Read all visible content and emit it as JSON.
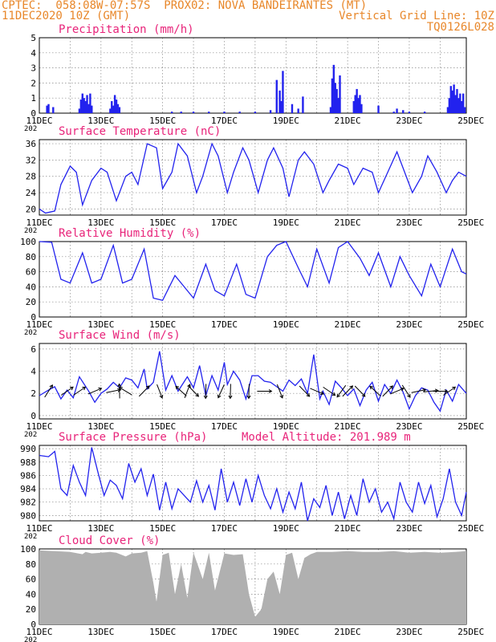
{
  "header": {
    "line1_left": "CPTEC:  058:08W-07:57S  PROX02: NOVA BANDEIRANTES (MT)",
    "line2_left": "11DEC2020 10Z (GMT)",
    "line2_right": "Vertical Grid Line: 10Z",
    "line3_right": "TQ0126L028"
  },
  "colors": {
    "header": "#e8872a",
    "title": "#e8247a",
    "series": "#2222ee",
    "cloud": "#b0b0b0",
    "grid": "#888888"
  },
  "x_tick_labels": [
    "11DEC",
    "13DEC",
    "15DEC",
    "17DEC",
    "19DEC",
    "21DEC",
    "23DEC",
    "25DEC"
  ],
  "x_year_fragment": "202",
  "chart_data": [
    {
      "type": "bar",
      "title": "Precipitation (mm/h)",
      "ylim": [
        0,
        5
      ],
      "yticks": [
        0,
        1,
        2,
        3,
        4,
        5
      ],
      "x_unit": "days since 11DEC 10Z",
      "bars": [
        [
          0.25,
          0.5
        ],
        [
          0.3,
          0.6
        ],
        [
          0.45,
          0.4
        ],
        [
          1.3,
          0.3
        ],
        [
          1.35,
          0.9
        ],
        [
          1.4,
          1.3
        ],
        [
          1.45,
          1.0
        ],
        [
          1.5,
          0.8
        ],
        [
          1.55,
          1.2
        ],
        [
          1.6,
          0.6
        ],
        [
          1.65,
          1.3
        ],
        [
          1.7,
          0.5
        ],
        [
          2.3,
          0.3
        ],
        [
          2.35,
          0.8
        ],
        [
          2.4,
          0.5
        ],
        [
          2.45,
          1.2
        ],
        [
          2.5,
          0.9
        ],
        [
          2.55,
          0.6
        ],
        [
          2.6,
          0.4
        ],
        [
          4.3,
          0.1
        ],
        [
          4.6,
          0.1
        ],
        [
          5.0,
          0.1
        ],
        [
          5.5,
          0.1
        ],
        [
          6.0,
          0.1
        ],
        [
          6.5,
          0.1
        ],
        [
          7.0,
          0.1
        ],
        [
          7.5,
          0.2
        ],
        [
          7.7,
          2.2
        ],
        [
          7.8,
          1.5
        ],
        [
          7.85,
          0.8
        ],
        [
          7.9,
          2.8
        ],
        [
          8.2,
          0.6
        ],
        [
          8.4,
          0.3
        ],
        [
          8.55,
          1.1
        ],
        [
          9.45,
          0.4
        ],
        [
          9.5,
          2.3
        ],
        [
          9.55,
          3.2
        ],
        [
          9.6,
          2.0
        ],
        [
          9.65,
          1.6
        ],
        [
          9.7,
          1.0
        ],
        [
          9.75,
          2.5
        ],
        [
          10.2,
          0.8
        ],
        [
          10.25,
          1.2
        ],
        [
          10.3,
          1.6
        ],
        [
          10.35,
          1.0
        ],
        [
          10.4,
          1.2
        ],
        [
          10.45,
          0.6
        ],
        [
          11.0,
          0.5
        ],
        [
          11.5,
          0.1
        ],
        [
          11.6,
          0.3
        ],
        [
          11.8,
          0.2
        ],
        [
          12.0,
          0.1
        ],
        [
          12.5,
          0.1
        ],
        [
          13.25,
          0.4
        ],
        [
          13.3,
          1.0
        ],
        [
          13.35,
          1.8
        ],
        [
          13.4,
          1.5
        ],
        [
          13.45,
          1.9
        ],
        [
          13.5,
          1.2
        ],
        [
          13.55,
          1.6
        ],
        [
          13.6,
          1.0
        ],
        [
          13.65,
          1.3
        ],
        [
          13.7,
          0.8
        ],
        [
          13.75,
          1.3
        ],
        [
          13.8,
          0.4
        ]
      ]
    },
    {
      "type": "line",
      "title": "Surface Temperature (nC)",
      "ylim": [
        18.5,
        37
      ],
      "yticks": [
        20,
        24,
        28,
        32,
        36
      ],
      "x": [
        0,
        0.2,
        0.5,
        0.7,
        1.0,
        1.2,
        1.4,
        1.7,
        2.0,
        2.2,
        2.5,
        2.8,
        3.0,
        3.2,
        3.5,
        3.8,
        4.0,
        4.3,
        4.5,
        4.8,
        5.1,
        5.3,
        5.6,
        5.8,
        6.1,
        6.3,
        6.6,
        6.8,
        7.1,
        7.4,
        7.6,
        7.9,
        8.1,
        8.4,
        8.6,
        8.9,
        9.2,
        9.4,
        9.7,
        10.0,
        10.2,
        10.5,
        10.8,
        11.0,
        11.3,
        11.6,
        11.8,
        12.1,
        12.4,
        12.6,
        12.9,
        13.2,
        13.4,
        13.6,
        13.85
      ],
      "y": [
        20,
        19,
        19.5,
        26,
        30.5,
        29,
        21,
        27,
        30,
        29,
        22,
        28,
        29,
        26,
        36,
        35,
        25,
        29,
        36,
        33,
        24,
        28,
        36,
        33,
        24,
        29,
        35,
        32,
        24,
        32,
        35,
        30,
        23,
        32,
        34,
        31,
        24,
        27,
        31,
        30,
        26,
        30,
        29,
        24,
        29,
        34,
        30,
        24,
        28,
        33,
        29,
        24,
        27,
        29,
        28
      ]
    },
    {
      "type": "line",
      "title": "Relative Humidity (%)",
      "ylim": [
        0,
        100
      ],
      "yticks": [
        0,
        20,
        40,
        60,
        80,
        100
      ],
      "x": [
        0,
        0.4,
        0.7,
        1.0,
        1.4,
        1.7,
        2.0,
        2.4,
        2.7,
        3.0,
        3.4,
        3.7,
        4.0,
        4.4,
        4.7,
        5.0,
        5.4,
        5.7,
        6.0,
        6.4,
        6.7,
        7.0,
        7.4,
        7.7,
        8.0,
        8.4,
        8.7,
        9.0,
        9.4,
        9.7,
        10.0,
        10.4,
        10.7,
        11.0,
        11.4,
        11.7,
        12.0,
        12.4,
        12.7,
        13.0,
        13.4,
        13.7,
        13.85
      ],
      "y": [
        100,
        99,
        50,
        45,
        85,
        45,
        50,
        95,
        45,
        50,
        90,
        25,
        22,
        55,
        40,
        25,
        70,
        35,
        28,
        70,
        30,
        25,
        80,
        95,
        100,
        65,
        40,
        90,
        45,
        92,
        100,
        78,
        55,
        85,
        40,
        80,
        55,
        28,
        70,
        40,
        90,
        60,
        57
      ]
    },
    {
      "type": "line",
      "title": "Surface Wind (m/s)",
      "ylim": [
        -0.3,
        6.5
      ],
      "yticks": [
        0,
        2,
        4,
        6
      ],
      "x": [
        0,
        0.3,
        0.5,
        0.7,
        0.9,
        1.1,
        1.3,
        1.6,
        1.8,
        2.0,
        2.2,
        2.4,
        2.6,
        2.8,
        3.0,
        3.2,
        3.4,
        3.5,
        3.7,
        3.9,
        4.1,
        4.3,
        4.5,
        4.8,
        5.0,
        5.2,
        5.4,
        5.6,
        5.8,
        6.0,
        6.1,
        6.3,
        6.5,
        6.7,
        6.9,
        7.1,
        7.3,
        7.5,
        7.7,
        7.9,
        8.1,
        8.3,
        8.5,
        8.7,
        8.9,
        9.1,
        9.2,
        9.4,
        9.6,
        9.8,
        10.0,
        10.2,
        10.4,
        10.6,
        10.8,
        11.0,
        11.2,
        11.4,
        11.6,
        11.8,
        12.0,
        12.2,
        12.4,
        12.6,
        12.8,
        13.0,
        13.2,
        13.4,
        13.6,
        13.85
      ],
      "y": [
        1.8,
        2.3,
        2.6,
        1.5,
        2.3,
        1.6,
        3.5,
        2.2,
        1.2,
        2.0,
        2.4,
        3.0,
        2.5,
        3.4,
        3.2,
        2.5,
        4.2,
        2.4,
        3.0,
        5.8,
        2.3,
        3.6,
        2.2,
        3.5,
        2.5,
        4.5,
        1.8,
        3.6,
        2.3,
        4.8,
        2.8,
        4.0,
        3.2,
        1.5,
        3.6,
        3.6,
        3.1,
        3.0,
        2.6,
        2.2,
        3.2,
        2.7,
        3.3,
        2.0,
        5.5,
        1.5,
        2.2,
        1.0,
        3.1,
        2.5,
        1.8,
        2.4,
        0.9,
        2.3,
        3.0,
        1.3,
        2.8,
        2.0,
        3.2,
        2.1,
        0.6,
        1.8,
        2.5,
        2.3,
        1.2,
        0.4,
        2.3,
        1.3,
        2.8,
        2.0
      ]
    },
    {
      "type": "line",
      "title": "Surface Pressure (hPa)",
      "annotation": "Model Altitude: 201.989 m",
      "ylim": [
        979.2,
        990.5
      ],
      "yticks": [
        980,
        982,
        984,
        986,
        988,
        990
      ],
      "x": [
        0,
        0.3,
        0.5,
        0.7,
        0.9,
        1.1,
        1.3,
        1.5,
        1.7,
        1.9,
        2.1,
        2.3,
        2.5,
        2.7,
        2.9,
        3.1,
        3.3,
        3.5,
        3.7,
        3.9,
        4.1,
        4.3,
        4.5,
        4.7,
        4.9,
        5.1,
        5.3,
        5.5,
        5.7,
        5.9,
        6.1,
        6.3,
        6.5,
        6.7,
        6.9,
        7.1,
        7.3,
        7.5,
        7.7,
        7.9,
        8.1,
        8.3,
        8.5,
        8.7,
        8.9,
        9.1,
        9.3,
        9.5,
        9.7,
        9.9,
        10.1,
        10.3,
        10.5,
        10.7,
        10.9,
        11.1,
        11.3,
        11.5,
        11.7,
        11.9,
        12.1,
        12.3,
        12.5,
        12.7,
        12.9,
        13.1,
        13.3,
        13.5,
        13.7,
        13.85
      ],
      "y": [
        989,
        988.8,
        989.6,
        984,
        983,
        987.5,
        985,
        983,
        990.2,
        986.5,
        983,
        985.3,
        984.5,
        982.5,
        987.8,
        985,
        987,
        983,
        986.2,
        980.8,
        985,
        981,
        984,
        983,
        982,
        985.2,
        982,
        984.5,
        980.8,
        987,
        982,
        985,
        981.5,
        985.5,
        982,
        986,
        983,
        981,
        984,
        980.5,
        983.5,
        981,
        985,
        979.2,
        982.5,
        981.2,
        984.5,
        980,
        983.5,
        979.5,
        983,
        980,
        985.5,
        982,
        984,
        980.5,
        982,
        979.5,
        985,
        982,
        980.5,
        985,
        981.8,
        984.5,
        979.8,
        982.5,
        987,
        982,
        980,
        983.5
      ]
    },
    {
      "type": "area",
      "title": "Cloud Cover (%)",
      "ylim": [
        0,
        100
      ],
      "yticks": [
        0,
        20,
        40,
        60,
        80,
        100
      ],
      "x": [
        0,
        0.5,
        1.0,
        1.4,
        1.5,
        1.7,
        2.0,
        2.3,
        2.5,
        2.8,
        3.0,
        3.3,
        3.5,
        3.7,
        3.8,
        4.0,
        4.2,
        4.4,
        4.6,
        4.8,
        5.0,
        5.3,
        5.5,
        5.7,
        6.0,
        6.3,
        6.6,
        6.8,
        7.0,
        7.2,
        7.4,
        7.6,
        7.8,
        8.0,
        8.2,
        8.4,
        8.6,
        8.8,
        9.0,
        9.5,
        10,
        10.5,
        11,
        11.5,
        12,
        12.5,
        13,
        13.5,
        13.85
      ],
      "y": [
        98,
        97,
        96,
        93,
        96,
        94,
        95,
        96,
        95,
        90,
        94,
        95,
        97,
        55,
        30,
        92,
        95,
        40,
        80,
        35,
        95,
        60,
        95,
        45,
        94,
        92,
        93,
        40,
        10,
        20,
        60,
        70,
        40,
        92,
        95,
        60,
        88,
        93,
        96,
        96,
        97,
        96,
        96,
        97,
        95,
        96,
        95,
        96,
        97
      ]
    }
  ]
}
